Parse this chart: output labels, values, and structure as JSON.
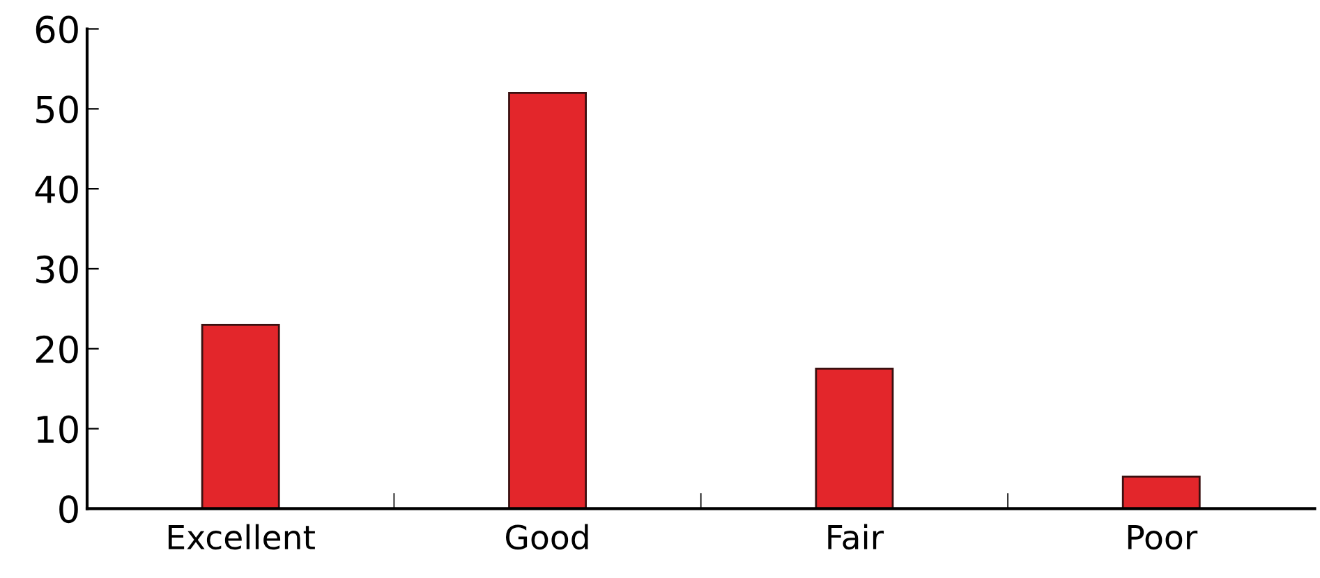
{
  "chart_data": {
    "type": "bar",
    "categories": [
      "Excellent",
      "Good",
      "Fair",
      "Poor"
    ],
    "values": [
      23,
      52,
      17.5,
      4
    ],
    "color": "#e3262b",
    "ylim": [
      0,
      60
    ],
    "yticks": [
      0,
      10,
      20,
      30,
      40,
      50,
      60
    ],
    "grid": false
  }
}
